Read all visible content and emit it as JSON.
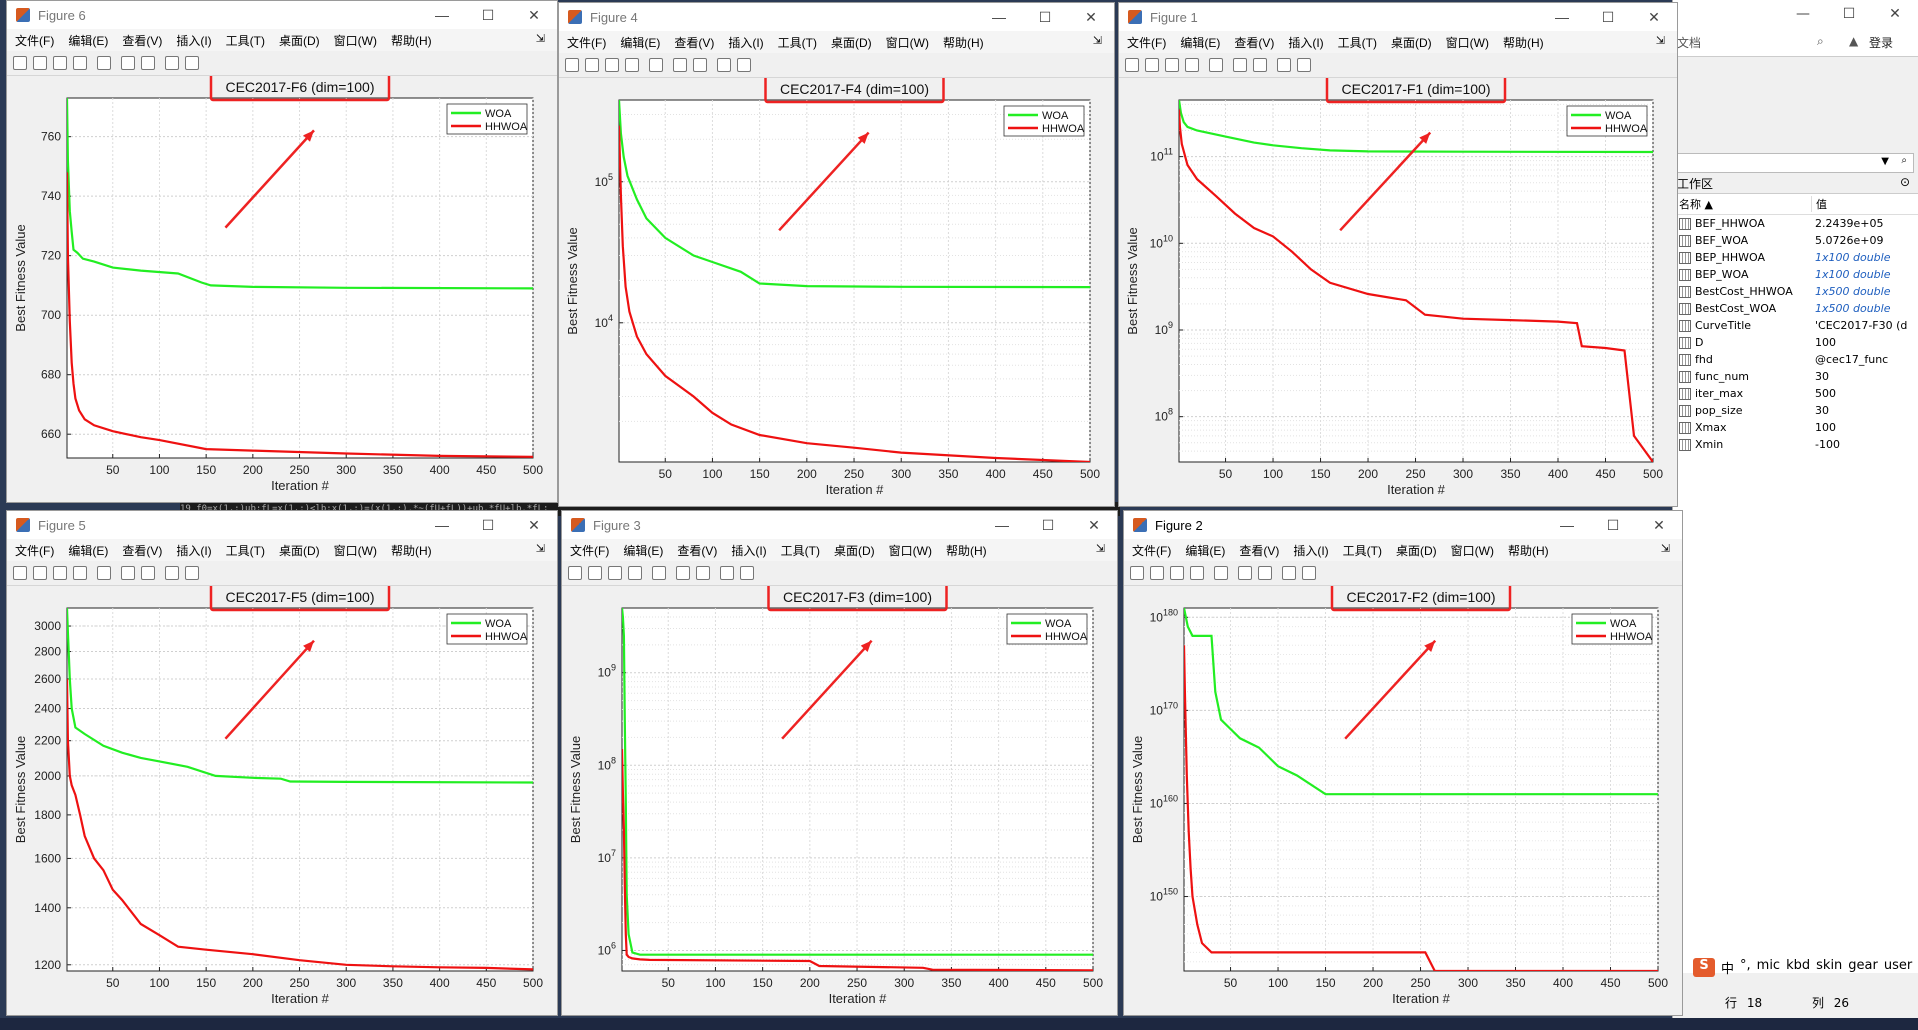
{
  "ui": {
    "menu": [
      "文件(F)",
      "编辑(E)",
      "查看(V)",
      "插入(I)",
      "工具(T)",
      "桌面(D)",
      "窗口(W)",
      "帮助(H)"
    ],
    "win_ctrls": [
      "—",
      "☐",
      "✕"
    ],
    "background_code": "19        f0=x(1,:)ub:fL=x(1,:)<lb:x(1,:)=(x(1,:).*~(fU+fL))+ub.*fU+lb.*fL;",
    "workspace": {
      "search_placeholder": "文档",
      "login": "登录",
      "panel_title": "工作区",
      "col_name": "名称 ▲",
      "col_value": "值",
      "status_row": "行",
      "status_row_val": "18",
      "status_col": "列",
      "status_col_val": "26",
      "tray_icons": [
        "S",
        "中",
        "°,",
        "mic",
        "kbd",
        "skin",
        "gear",
        "user"
      ],
      "variables": [
        {
          "name": "BEF_HHWOA",
          "value": "2.2439e+05",
          "italic": false
        },
        {
          "name": "BEF_WOA",
          "value": "5.0726e+09",
          "italic": false
        },
        {
          "name": "BEP_HHWOA",
          "value": "1x100 double",
          "italic": true
        },
        {
          "name": "BEP_WOA",
          "value": "1x100 double",
          "italic": true
        },
        {
          "name": "BestCost_HHWOA",
          "value": "1x500 double",
          "italic": true
        },
        {
          "name": "BestCost_WOA",
          "value": "1x500 double",
          "italic": true
        },
        {
          "name": "CurveTitle",
          "value": "'CEC2017-F30 (d",
          "italic": false
        },
        {
          "name": "D",
          "value": "100",
          "italic": false
        },
        {
          "name": "fhd",
          "value": "@cec17_func",
          "italic": false
        },
        {
          "name": "func_num",
          "value": "30",
          "italic": false
        },
        {
          "name": "iter_max",
          "value": "500",
          "italic": false
        },
        {
          "name": "pop_size",
          "value": "30",
          "italic": false
        },
        {
          "name": "Xmax",
          "value": "100",
          "italic": false
        },
        {
          "name": "Xmin",
          "value": "-100",
          "italic": false
        }
      ]
    },
    "figures": [
      {
        "title": "Figure 6",
        "active": false
      },
      {
        "title": "Figure 4",
        "active": false
      },
      {
        "title": "Figure 1",
        "active": false
      },
      {
        "title": "Figure 5",
        "active": false
      },
      {
        "title": "Figure 3",
        "active": false
      },
      {
        "title": "Figure 2",
        "active": true
      }
    ],
    "colors": {
      "woa": "#22ee22",
      "hhwoa": "#ee1111",
      "highlight": "#ee2222"
    }
  },
  "chart_data": [
    {
      "type": "line",
      "title": "CEC2017-F6 (dim=100)",
      "xlabel": "Iteration #",
      "ylabel": "Best Fitness Value",
      "yscale": "linear",
      "xlim": [
        1,
        500
      ],
      "ylim": [
        652,
        773
      ],
      "xticks": [
        50,
        100,
        150,
        200,
        250,
        300,
        350,
        400,
        450,
        500
      ],
      "yticks": [
        660,
        680,
        700,
        720,
        740,
        760
      ],
      "ytick_labels": [
        "660",
        "680",
        "700",
        "720",
        "740",
        "760"
      ],
      "legend": "top-right",
      "grid": true,
      "series": [
        {
          "name": "WOA",
          "x": [
            1,
            2,
            4,
            6,
            8,
            12,
            18,
            30,
            50,
            80,
            120,
            145,
            155,
            200,
            300,
            500
          ],
          "y": [
            773,
            752,
            735,
            728,
            722,
            721,
            719,
            718,
            716,
            715,
            714,
            711,
            710,
            709.5,
            709.2,
            709
          ]
        },
        {
          "name": "HHWOA",
          "x": [
            1,
            2,
            4,
            6,
            8,
            10,
            14,
            20,
            30,
            50,
            80,
            100,
            150,
            200,
            300,
            400,
            500
          ],
          "y": [
            748,
            720,
            698,
            684,
            677,
            672,
            668,
            665,
            663,
            661,
            659,
            658,
            655,
            654.5,
            653.5,
            652.7,
            652.4
          ]
        }
      ],
      "annotations": [
        "arrow"
      ]
    },
    {
      "type": "line",
      "title": "CEC2017-F4 (dim=100)",
      "xlabel": "Iteration #",
      "ylabel": "Best Fitness Value",
      "yscale": "log",
      "xlim": [
        1,
        500
      ],
      "ylim": [
        1030,
        380000
      ],
      "xticks": [
        50,
        100,
        150,
        200,
        250,
        300,
        350,
        400,
        450,
        500
      ],
      "yticks": [
        10000,
        100000
      ],
      "ytick_labels": [
        "10^4",
        "10^5"
      ],
      "legend": "top-right",
      "grid": true,
      "series": [
        {
          "name": "WOA",
          "x": [
            1,
            3,
            6,
            10,
            20,
            30,
            50,
            80,
            100,
            130,
            150,
            200,
            300,
            500
          ],
          "y": [
            380000,
            220000,
            150000,
            110000,
            75000,
            55000,
            40000,
            30000,
            27000,
            23000,
            19000,
            18200,
            18000,
            17900
          ]
        },
        {
          "name": "HHWOA",
          "x": [
            1,
            3,
            5,
            8,
            12,
            20,
            30,
            50,
            80,
            100,
            120,
            150,
            200,
            250,
            300,
            400,
            500
          ],
          "y": [
            250000,
            80000,
            35000,
            18000,
            12000,
            8000,
            6000,
            4200,
            3000,
            2300,
            1900,
            1600,
            1400,
            1300,
            1200,
            1100,
            1030
          ]
        }
      ],
      "annotations": [
        "arrow"
      ]
    },
    {
      "type": "line",
      "title": "CEC2017-F1 (dim=100)",
      "xlabel": "Iteration #",
      "ylabel": "Best Fitness Value",
      "yscale": "log",
      "xlim": [
        1,
        500
      ],
      "ylim": [
        30000000.0,
        450000000000.0
      ],
      "xticks": [
        50,
        100,
        150,
        200,
        250,
        300,
        350,
        400,
        450,
        500
      ],
      "yticks": [
        100000000.0,
        1000000000.0,
        10000000000.0,
        100000000000.0
      ],
      "ytick_labels": [
        "10^8",
        "10^9",
        "10^10",
        "10^11"
      ],
      "legend": "top-right",
      "grid": true,
      "series": [
        {
          "name": "WOA",
          "x": [
            1,
            3,
            6,
            10,
            20,
            50,
            80,
            100,
            130,
            160,
            200,
            300,
            500
          ],
          "y": [
            450000000000.0,
            320000000000.0,
            250000000000.0,
            220000000000.0,
            200000000000.0,
            170000000000.0,
            145000000000.0,
            135000000000.0,
            125000000000.0,
            118000000000.0,
            115000000000.0,
            114000000000.0,
            113000000000.0
          ]
        },
        {
          "name": "HHWOA",
          "x": [
            1,
            2,
            4,
            10,
            20,
            40,
            60,
            80,
            100,
            120,
            140,
            160,
            200,
            240,
            260,
            300,
            350,
            400,
            420,
            425,
            450,
            470,
            480,
            500
          ],
          "y": [
            350000000000.0,
            220000000000.0,
            140000000000.0,
            80000000000.0,
            55000000000.0,
            35000000000.0,
            22000000000.0,
            15000000000.0,
            12000000000.0,
            8000000000.0,
            5000000000.0,
            3500000000.0,
            2600000000.0,
            2200000000.0,
            1500000000.0,
            1350000000.0,
            1300000000.0,
            1250000000.0,
            1200000000.0,
            650000000.0,
            620000000.0,
            580000000.0,
            60000000.0,
            30000000.0
          ]
        }
      ],
      "annotations": [
        "arrow"
      ]
    },
    {
      "type": "line",
      "title": "CEC2017-F5 (dim=100)",
      "xlabel": "Iteration #",
      "ylabel": "Best Fitness Value",
      "yscale": "log",
      "xlim": [
        1,
        500
      ],
      "ylim": [
        1180,
        3150
      ],
      "xticks": [
        50,
        100,
        150,
        200,
        250,
        300,
        350,
        400,
        450,
        500
      ],
      "yticks": [
        1200,
        1400,
        1600,
        1800,
        2000,
        2200,
        2400,
        2600,
        2800,
        3000
      ],
      "ytick_labels": [
        "1200",
        "1400",
        "1600",
        "1800",
        "2000",
        "2200",
        "2400",
        "2600",
        "2800",
        "3000"
      ],
      "legend": "top-right",
      "grid": true,
      "series": [
        {
          "name": "WOA",
          "x": [
            1,
            2,
            4,
            6,
            10,
            20,
            40,
            60,
            80,
            100,
            130,
            160,
            200,
            230,
            240,
            300,
            500
          ],
          "y": [
            3150,
            2950,
            2600,
            2400,
            2280,
            2240,
            2170,
            2130,
            2100,
            2080,
            2050,
            2000,
            1990,
            1985,
            1970,
            1968,
            1965
          ]
        },
        {
          "name": "HHWOA",
          "x": [
            1,
            2,
            4,
            6,
            10,
            15,
            20,
            30,
            40,
            50,
            60,
            80,
            100,
            120,
            150,
            200,
            250,
            300,
            350,
            400,
            450,
            500
          ],
          "y": [
            2600,
            2200,
            2000,
            1950,
            1900,
            1800,
            1700,
            1600,
            1550,
            1470,
            1430,
            1340,
            1300,
            1260,
            1250,
            1235,
            1215,
            1200,
            1195,
            1192,
            1190,
            1185
          ]
        }
      ],
      "annotations": [
        "arrow"
      ]
    },
    {
      "type": "line",
      "title": "CEC2017-F3 (dim=100)",
      "xlabel": "Iteration #",
      "ylabel": "Best Fitness Value",
      "yscale": "log",
      "xlim": [
        1,
        500
      ],
      "ylim": [
        600000,
        5000000000.0
      ],
      "xticks": [
        50,
        100,
        150,
        200,
        250,
        300,
        350,
        400,
        450,
        500
      ],
      "yticks": [
        1000000.0,
        10000000.0,
        100000000.0,
        1000000000.0
      ],
      "ytick_labels": [
        "10^6",
        "10^7",
        "10^8",
        "10^9"
      ],
      "legend": "top-right",
      "grid": true,
      "series": [
        {
          "name": "WOA",
          "x": [
            1,
            2,
            3,
            4,
            5,
            6,
            8,
            12,
            20,
            500
          ],
          "y": [
            5000000000.0,
            4000000000.0,
            2500000000.0,
            300000000.0,
            40000000.0,
            4000000.0,
            1500000.0,
            950000,
            900000,
            900000
          ]
        },
        {
          "name": "HHWOA",
          "x": [
            1,
            2,
            3,
            4,
            5,
            6,
            8,
            12,
            20,
            30,
            200,
            210,
            320,
            330,
            500
          ],
          "y": [
            150000000.0,
            50000000.0,
            20000000.0,
            5000000.0,
            1500000.0,
            900000,
            850000,
            820000,
            800000,
            790000,
            770000,
            680000,
            650000,
            620000,
            610000
          ]
        }
      ],
      "annotations": [
        "arrow"
      ]
    },
    {
      "type": "line",
      "title": "CEC2017-F2 (dim=100)",
      "xlabel": "Iteration #",
      "ylabel": "Best Fitness Value",
      "yscale": "log",
      "xlim": [
        1,
        500
      ],
      "ylim": [
        1e+142,
        1e+181
      ],
      "xticks": [
        50,
        100,
        150,
        200,
        250,
        300,
        350,
        400,
        450,
        500
      ],
      "yticks": [
        1e+150,
        1e+160,
        1e+170,
        1e+180
      ],
      "ytick_labels": [
        "10^150",
        "10^160",
        "10^170",
        "10^180"
      ],
      "legend": "top-right",
      "grid": true,
      "series": [
        {
          "name": "WOA",
          "x": [
            1,
            5,
            10,
            30,
            34,
            40,
            50,
            60,
            80,
            90,
            100,
            120,
            150,
            200,
            500
          ],
          "y": [
            1e+181,
            1e+179,
            1e+178,
            1e+178,
            1e+172,
            1e+169,
            1e+168,
            1e+167,
            1e+166,
            1e+165,
            1e+164,
            1e+163,
            1e+161,
            1e+161,
            1e+161
          ]
        },
        {
          "name": "HHWOA",
          "x": [
            1,
            2,
            4,
            6,
            8,
            10,
            15,
            20,
            30,
            40,
            50,
            100,
            200,
            255,
            265,
            500
          ],
          "y": [
            1e+177,
            1e+172,
            1e+163,
            1e+157,
            1e+153,
            1e+150,
            1e+147,
            1e+145,
            1e+144,
            1e+144,
            1e+144,
            1e+144,
            1e+144,
            1e+144,
            1e+142,
            1e+142
          ]
        }
      ],
      "annotations": [
        "arrow"
      ]
    }
  ]
}
